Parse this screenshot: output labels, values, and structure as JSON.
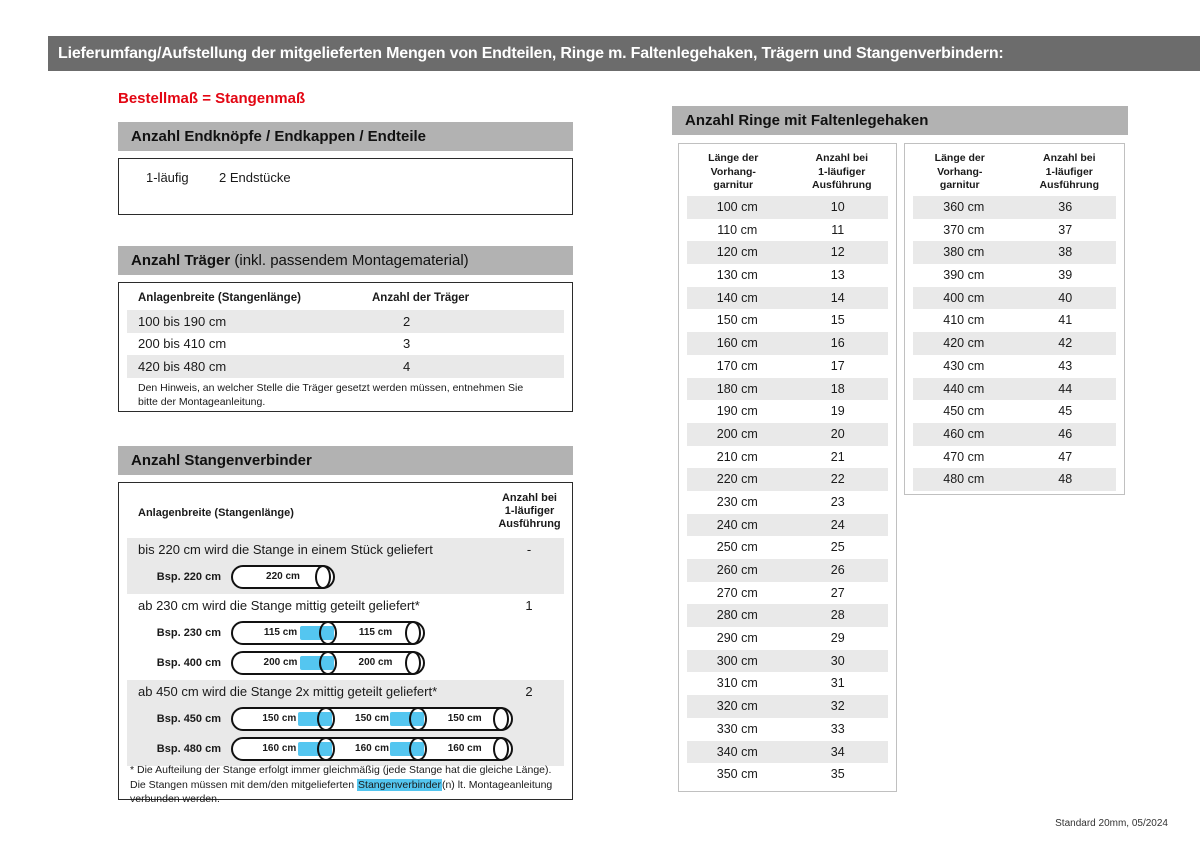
{
  "page": {
    "header": "Lieferumfang/Aufstellung der mitgelieferten Mengen von Endteilen, Ringe m. Faltenlegehaken, Trägern und Stangenverbindern:",
    "subtitle": "Bestellmaß = Stangenmaß",
    "footer": "Standard 20mm, 05/2024"
  },
  "colors": {
    "header_bar": "#6c6c6c",
    "section_bar": "#b2b2b2",
    "row_stripe": "#e9e9e9",
    "accent_red": "#e30613",
    "connector_blue": "#54c6f0"
  },
  "endteile": {
    "title": "Anzahl Endknöpfe / Endkappen / Endteile",
    "rows": [
      {
        "label": "1-läufig",
        "value": "2 Endstücke"
      }
    ]
  },
  "traeger": {
    "title_bold": "Anzahl Träger",
    "title_rest": " (inkl. passendem Montagematerial)",
    "col1": "Anlagenbreite (Stangenlänge)",
    "col2": "Anzahl der Träger",
    "rows": [
      {
        "range": "100 bis 190 cm",
        "count": "2"
      },
      {
        "range": "200 bis 410 cm",
        "count": "3"
      },
      {
        "range": "420 bis 480 cm",
        "count": "4"
      }
    ],
    "note": "Den Hinweis, an welcher Stelle die Träger gesetzt werden müssen, entnehmen Sie bitte der Montageanleitung."
  },
  "verbinder": {
    "title": "Anzahl Stangenverbinder",
    "col1": "Anlagenbreite (Stangenlänge)",
    "col2_lines": [
      "Anzahl bei",
      "1-läufiger",
      "Ausführung"
    ],
    "blocks": [
      {
        "text": "bis 220 cm wird die Stange in einem Stück geliefert",
        "count": "-",
        "striped": true,
        "rods": [
          {
            "label": "Bsp. 220 cm",
            "segments": [
              "220 cm"
            ]
          }
        ]
      },
      {
        "text": "ab 230 cm wird die Stange mittig geteilt geliefert*",
        "count": "1",
        "striped": false,
        "rods": [
          {
            "label": "Bsp. 230 cm",
            "segments": [
              "115 cm",
              "115 cm"
            ]
          },
          {
            "label": "Bsp. 400 cm",
            "segments": [
              "200 cm",
              "200 cm"
            ]
          }
        ]
      },
      {
        "text": "ab 450 cm wird die Stange 2x mittig geteilt geliefert*",
        "count": "2",
        "striped": true,
        "rods": [
          {
            "label": "Bsp. 450 cm",
            "segments": [
              "150 cm",
              "150 cm",
              "150 cm"
            ]
          },
          {
            "label": "Bsp. 480 cm",
            "segments": [
              "160 cm",
              "160 cm",
              "160 cm"
            ]
          }
        ]
      }
    ],
    "footnote_pre": "* Die Aufteilung der Stange erfolgt immer gleichmäßig (jede Stange hat die gleiche Länge). Die Stangen müssen mit dem/den mitgelieferten ",
    "footnote_highlight": "Stangenverbinder",
    "footnote_post": "(n) lt. Montageanleitung verbunden werden."
  },
  "ringe": {
    "title": "Anzahl Ringe mit Faltenlegehaken",
    "col1_lines": [
      "Länge der",
      "Vorhang-",
      "garnitur"
    ],
    "col2_lines": [
      "Anzahl bei",
      "1-läufiger",
      "Ausführung"
    ],
    "table1": [
      [
        "100 cm",
        "10"
      ],
      [
        "110 cm",
        "11"
      ],
      [
        "120 cm",
        "12"
      ],
      [
        "130 cm",
        "13"
      ],
      [
        "140 cm",
        "14"
      ],
      [
        "150 cm",
        "15"
      ],
      [
        "160 cm",
        "16"
      ],
      [
        "170 cm",
        "17"
      ],
      [
        "180 cm",
        "18"
      ],
      [
        "190 cm",
        "19"
      ],
      [
        "200 cm",
        "20"
      ],
      [
        "210 cm",
        "21"
      ],
      [
        "220 cm",
        "22"
      ],
      [
        "230 cm",
        "23"
      ],
      [
        "240 cm",
        "24"
      ],
      [
        "250 cm",
        "25"
      ],
      [
        "260 cm",
        "26"
      ],
      [
        "270 cm",
        "27"
      ],
      [
        "280 cm",
        "28"
      ],
      [
        "290 cm",
        "29"
      ],
      [
        "300 cm",
        "30"
      ],
      [
        "310 cm",
        "31"
      ],
      [
        "320 cm",
        "32"
      ],
      [
        "330 cm",
        "33"
      ],
      [
        "340 cm",
        "34"
      ],
      [
        "350 cm",
        "35"
      ]
    ],
    "table2": [
      [
        "360 cm",
        "36"
      ],
      [
        "370 cm",
        "37"
      ],
      [
        "380 cm",
        "38"
      ],
      [
        "390 cm",
        "39"
      ],
      [
        "400 cm",
        "40"
      ],
      [
        "410 cm",
        "41"
      ],
      [
        "420 cm",
        "42"
      ],
      [
        "430 cm",
        "43"
      ],
      [
        "440 cm",
        "44"
      ],
      [
        "450 cm",
        "45"
      ],
      [
        "460 cm",
        "46"
      ],
      [
        "470 cm",
        "47"
      ],
      [
        "480 cm",
        "48"
      ]
    ]
  }
}
